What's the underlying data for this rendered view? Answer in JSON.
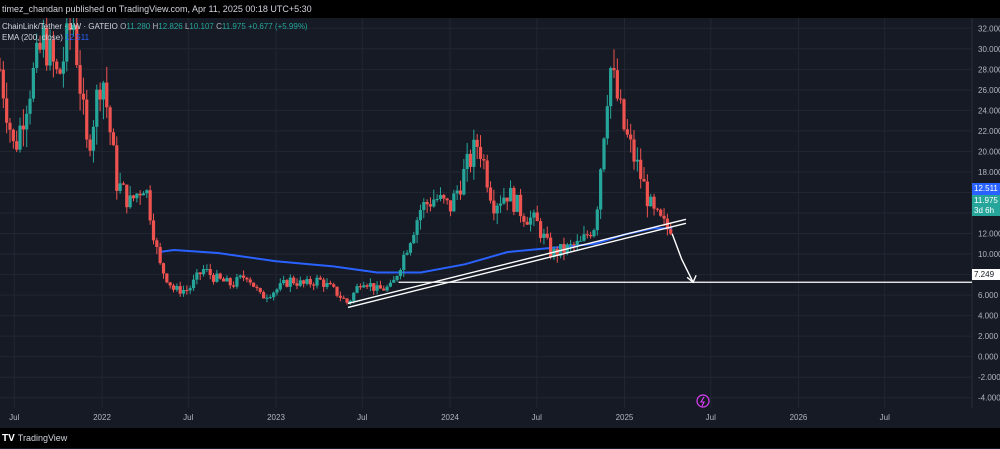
{
  "header": {
    "publish_line": "timez_chandan published on TradingView.com, Apr 11, 2025 00:18 UTC+5:30"
  },
  "legend": {
    "symbol_line": "ChainLink/Tether · 1W · GATEIO",
    "ohlc": {
      "o_label": "O",
      "o": "11.280",
      "h_label": "H",
      "h": "12.826",
      "l_label": "L",
      "l": "10.107",
      "c_label": "C",
      "c": "11.975",
      "change": "+0.677 (+5.99%)"
    },
    "ema_label": "EMA (200, close)",
    "ema_value": "12.511"
  },
  "price_tags": {
    "ema": "12.511",
    "close": "11.975",
    "countdown": "3d 6h",
    "target": "7.249"
  },
  "footer": {
    "brand": "TradingView"
  },
  "colors": {
    "background": "#161a25",
    "up": "#26a69a",
    "down": "#ef5350",
    "ema": "#2962ff",
    "grid": "#222632",
    "text": "#b2b5be"
  },
  "chart_data": {
    "type": "candlestick",
    "title": "ChainLink/Tether · 1W · GATEIO",
    "yaxis": {
      "min": -5,
      "max": 33,
      "ticks": [
        32,
        30,
        28,
        26,
        24,
        22,
        20,
        18,
        16,
        14,
        12,
        10,
        8,
        6,
        4,
        2,
        0,
        -2,
        -4
      ],
      "tick_labels": [
        "32.000",
        "30.000",
        "28.000",
        "26.000",
        "24.000",
        "22.000",
        "20.000",
        "18.000",
        "16.000",
        "14.000",
        "12.000",
        "10.000",
        "8.000",
        "6.000",
        "4.000",
        "2.000",
        "0.000",
        "-2.000",
        "-4.000"
      ]
    },
    "xaxis": {
      "start": "2021-06-01",
      "end": "2026-12-31",
      "ticks": [
        {
          "date": "2021-07-01",
          "label": "Jul"
        },
        {
          "date": "2022-01-01",
          "label": "2022"
        },
        {
          "date": "2022-07-01",
          "label": "Jul"
        },
        {
          "date": "2023-01-01",
          "label": "2023"
        },
        {
          "date": "2023-07-01",
          "label": "Jul"
        },
        {
          "date": "2024-01-01",
          "label": "2024"
        },
        {
          "date": "2024-07-01",
          "label": "Jul"
        },
        {
          "date": "2025-01-01",
          "label": "2025"
        },
        {
          "date": "2025-07-01",
          "label": "Jul"
        },
        {
          "date": "2026-01-01",
          "label": "2026"
        },
        {
          "date": "2026-07-01",
          "label": "Jul"
        }
      ]
    },
    "price_path": [
      [
        "2021-06-01",
        28.0
      ],
      [
        "2021-07-01",
        20.0
      ],
      [
        "2021-08-01",
        26.0
      ],
      [
        "2021-09-01",
        31.0
      ],
      [
        "2021-10-01",
        27.0
      ],
      [
        "2021-11-01",
        33.0
      ],
      [
        "2021-12-01",
        20.0
      ],
      [
        "2022-01-01",
        28.0
      ],
      [
        "2022-02-01",
        17.0
      ],
      [
        "2022-03-01",
        15.0
      ],
      [
        "2022-04-01",
        17.0
      ],
      [
        "2022-05-01",
        9.0
      ],
      [
        "2022-06-01",
        6.5
      ],
      [
        "2022-07-01",
        6.5
      ],
      [
        "2022-08-01",
        8.5
      ],
      [
        "2022-09-01",
        7.5
      ],
      [
        "2022-10-01",
        7.0
      ],
      [
        "2022-11-01",
        8.0
      ],
      [
        "2022-12-01",
        5.8
      ],
      [
        "2023-01-01",
        6.5
      ],
      [
        "2023-02-01",
        7.5
      ],
      [
        "2023-03-01",
        7.0
      ],
      [
        "2023-04-01",
        7.5
      ],
      [
        "2023-05-01",
        6.5
      ],
      [
        "2023-06-01",
        5.2
      ],
      [
        "2023-07-01",
        7.6
      ],
      [
        "2023-08-01",
        6.5
      ],
      [
        "2023-09-01",
        6.8
      ],
      [
        "2023-10-01",
        10.5
      ],
      [
        "2023-11-01",
        14.5
      ],
      [
        "2023-12-01",
        15.5
      ],
      [
        "2024-01-01",
        14.5
      ],
      [
        "2024-02-01",
        18.0
      ],
      [
        "2024-03-01",
        21.0
      ],
      [
        "2024-04-01",
        15.0
      ],
      [
        "2024-05-01",
        16.0
      ],
      [
        "2024-06-01",
        14.0
      ],
      [
        "2024-07-01",
        13.0
      ],
      [
        "2024-08-01",
        10.0
      ],
      [
        "2024-09-01",
        10.5
      ],
      [
        "2024-10-01",
        11.0
      ],
      [
        "2024-11-01",
        13.0
      ],
      [
        "2024-12-01",
        28.5
      ],
      [
        "2025-01-01",
        22.0
      ],
      [
        "2025-02-01",
        18.0
      ],
      [
        "2025-03-01",
        14.0
      ],
      [
        "2025-04-11",
        11.975
      ]
    ],
    "ema_200": [
      [
        "2022-05-01",
        10.2
      ],
      [
        "2022-06-01",
        10.4
      ],
      [
        "2022-09-01",
        10.1
      ],
      [
        "2023-01-01",
        9.3
      ],
      [
        "2023-05-01",
        8.8
      ],
      [
        "2023-08-01",
        8.2
      ],
      [
        "2023-11-01",
        8.2
      ],
      [
        "2024-02-01",
        9.0
      ],
      [
        "2024-05-01",
        10.2
      ],
      [
        "2024-08-01",
        10.6
      ],
      [
        "2024-11-01",
        11.0
      ],
      [
        "2025-01-01",
        11.9
      ],
      [
        "2025-03-01",
        12.5
      ],
      [
        "2025-04-11",
        12.511
      ]
    ],
    "trendline": [
      [
        "2023-06-01",
        4.8
      ],
      [
        "2025-05-10",
        13.0
      ]
    ],
    "projection": [
      [
        "2025-04-11",
        11.975
      ],
      [
        "2025-05-01",
        9.5
      ],
      [
        "2025-05-25",
        7.249
      ]
    ],
    "target_level": 7.249
  }
}
